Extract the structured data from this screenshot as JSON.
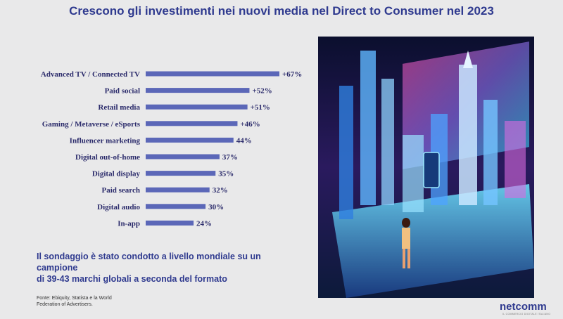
{
  "page": {
    "title": "Crescono gli investimenti nei nuovi media nel Direct to Consumer nel 2023",
    "note_line1": "Il sondaggio è stato condotto a livello mondiale su un campione",
    "note_line2": "di 39-43 marchi globali a seconda del formato",
    "source_line1": "Fonte: Ebiquity, Statista e la World",
    "source_line2": "Federation of Advertisers.",
    "logo_text": "netcomm",
    "logo_tagline": "IL COMMERCIO DIGITALE ITALIANO"
  },
  "colors": {
    "title": "#2f3a8f",
    "bar": "#5b67b8",
    "label": "#2b2b6b",
    "value": "#2b2b6b"
  },
  "chart_data": {
    "type": "bar",
    "orientation": "horizontal",
    "categories": [
      "Advanced TV / Connected TV",
      "Paid social",
      "Retail media",
      "Gaming / Metaverse / eSports",
      "Influencer marketing",
      "Digital out-of-home",
      "Digital display",
      "Paid search",
      "Digital audio",
      "In-app"
    ],
    "values": [
      67,
      52,
      51,
      46,
      44,
      37,
      35,
      32,
      30,
      24
    ],
    "value_labels": [
      "+67%",
      "+52%",
      "+51%",
      "+46%",
      "44%",
      "37%",
      "35%",
      "32%",
      "30%",
      "24%"
    ],
    "xlim": [
      0,
      67
    ]
  }
}
